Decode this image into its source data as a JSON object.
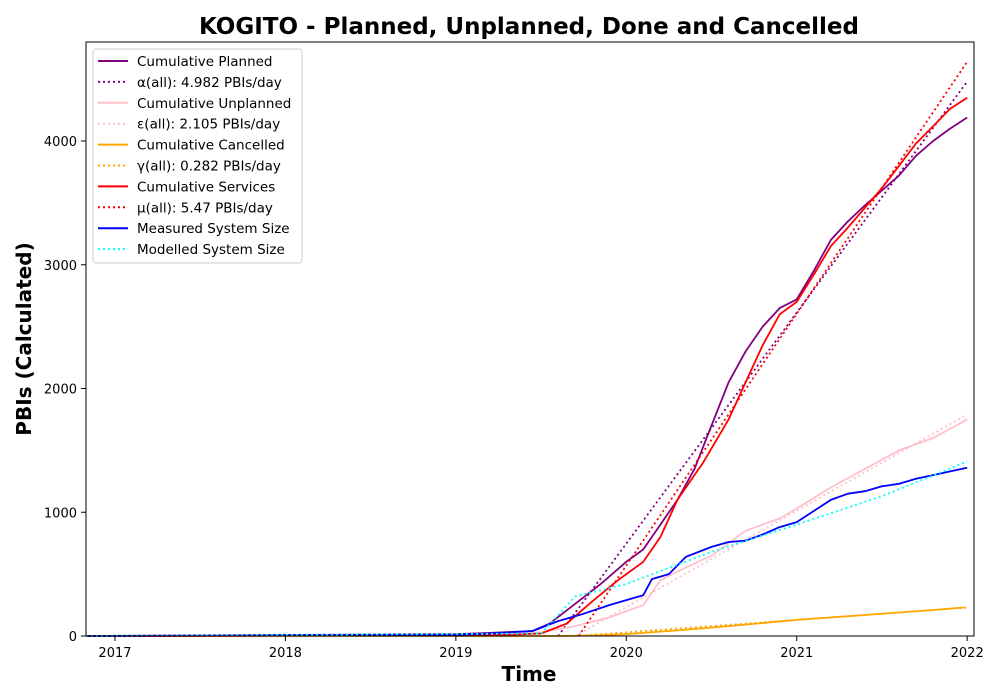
{
  "chart_data": {
    "type": "line",
    "title": "KOGITO - Planned, Unplanned, Done  and Cancelled",
    "xlabel": "Time",
    "ylabel": "PBIs (Calculated)",
    "x_unit": "year",
    "xlim": [
      2016.83,
      2022.04
    ],
    "ylim": [
      0,
      4800
    ],
    "xticks": [
      2017,
      2018,
      2019,
      2020,
      2021,
      2022
    ],
    "xtick_labels": [
      "2017",
      "2018",
      "2019",
      "2020",
      "2021",
      "2022"
    ],
    "yticks": [
      0,
      1000,
      2000,
      3000,
      4000
    ],
    "ytick_labels": [
      "0",
      "1000",
      "2000",
      "3000",
      "4000"
    ],
    "grid": false,
    "legend_position": "top-left",
    "series": [
      {
        "name": "Cumulative Planned",
        "color": "#800080",
        "style": "solid",
        "x": [
          2016.83,
          2019.0,
          2019.2,
          2019.45,
          2019.55,
          2019.7,
          2019.85,
          2020.0,
          2020.1,
          2020.2,
          2020.3,
          2020.4,
          2020.5,
          2020.6,
          2020.7,
          2020.8,
          2020.9,
          2021.0,
          2021.1,
          2021.2,
          2021.3,
          2021.4,
          2021.5,
          2021.6,
          2021.7,
          2021.8,
          2021.9,
          2022.0
        ],
        "y": [
          0,
          15,
          25,
          40,
          100,
          260,
          420,
          600,
          700,
          900,
          1100,
          1350,
          1700,
          2050,
          2300,
          2500,
          2650,
          2720,
          2950,
          3200,
          3350,
          3480,
          3600,
          3720,
          3880,
          4000,
          4100,
          4190
        ]
      },
      {
        "name": "α(all): 4.982 PBIs/day",
        "color": "#800080",
        "style": "dotted",
        "x": [
          2019.6,
          2022.0
        ],
        "y": [
          0,
          4480
        ]
      },
      {
        "name": "Cumulative Unplanned",
        "color": "#ffc0cb",
        "style": "solid",
        "x": [
          2016.83,
          2019.0,
          2019.3,
          2019.5,
          2019.7,
          2019.9,
          2020.1,
          2020.2,
          2020.3,
          2020.5,
          2020.7,
          2020.9,
          2021.0,
          2021.2,
          2021.4,
          2021.6,
          2021.8,
          2022.0
        ],
        "y": [
          0,
          5,
          10,
          30,
          80,
          150,
          250,
          450,
          520,
          650,
          850,
          950,
          1030,
          1200,
          1350,
          1500,
          1600,
          1750
        ]
      },
      {
        "name": "ε(all): 2.105 PBIs/day",
        "color": "#ffc0cb",
        "style": "dotted",
        "x": [
          2019.7,
          2022.0
        ],
        "y": [
          0,
          1790
        ]
      },
      {
        "name": "Cumulative Cancelled",
        "color": "#ffa500",
        "style": "solid",
        "x": [
          2016.83,
          2019.6,
          2019.8,
          2020.0,
          2020.3,
          2020.6,
          2021.0,
          2021.4,
          2021.8,
          2021.98
        ],
        "y": [
          0,
          0,
          5,
          15,
          45,
          80,
          130,
          170,
          210,
          230
        ]
      },
      {
        "name": "γ(all): 0.282 PBIs/day",
        "color": "#ffa500",
        "style": "dotted",
        "x": [
          2019.7,
          2022.0
        ],
        "y": [
          0,
          230
        ]
      },
      {
        "name": "Cumulative Services",
        "color": "#ff0000",
        "style": "solid",
        "x": [
          2016.83,
          2019.0,
          2019.3,
          2019.5,
          2019.65,
          2019.8,
          2019.95,
          2020.1,
          2020.2,
          2020.3,
          2020.45,
          2020.6,
          2020.7,
          2020.8,
          2020.9,
          2021.0,
          2021.1,
          2021.2,
          2021.3,
          2021.4,
          2021.5,
          2021.6,
          2021.7,
          2021.8,
          2021.9,
          2022.0
        ],
        "y": [
          0,
          5,
          10,
          20,
          100,
          280,
          450,
          600,
          800,
          1100,
          1400,
          1750,
          2050,
          2350,
          2600,
          2700,
          2920,
          3150,
          3300,
          3460,
          3620,
          3800,
          3980,
          4120,
          4260,
          4350
        ]
      },
      {
        "name": "μ(all): 5.47 PBIs/day",
        "color": "#ff0000",
        "style": "dotted",
        "x": [
          2019.72,
          2022.0
        ],
        "y": [
          0,
          4640
        ]
      },
      {
        "name": "Measured System Size",
        "color": "#0000ff",
        "style": "solid",
        "x": [
          2016.83,
          2019.0,
          2019.2,
          2019.45,
          2019.6,
          2019.75,
          2019.9,
          2020.0,
          2020.1,
          2020.15,
          2020.25,
          2020.35,
          2020.5,
          2020.6,
          2020.7,
          2020.8,
          2020.9,
          2021.0,
          2021.1,
          2021.2,
          2021.3,
          2021.4,
          2021.5,
          2021.6,
          2021.7,
          2021.8,
          2021.9,
          2022.0
        ],
        "y": [
          0,
          10,
          20,
          40,
          120,
          180,
          250,
          290,
          330,
          460,
          500,
          640,
          720,
          760,
          770,
          820,
          880,
          920,
          1010,
          1100,
          1150,
          1170,
          1210,
          1230,
          1270,
          1300,
          1330,
          1360
        ]
      },
      {
        "name": "Modelled System Size",
        "color": "#00ffff",
        "style": "dotted",
        "x": [
          2016.83,
          2019.5,
          2019.7,
          2020.0,
          2020.5,
          2021.0,
          2021.5,
          2022.0
        ],
        "y": [
          0,
          20,
          320,
          420,
          680,
          900,
          1130,
          1410
        ]
      }
    ]
  }
}
